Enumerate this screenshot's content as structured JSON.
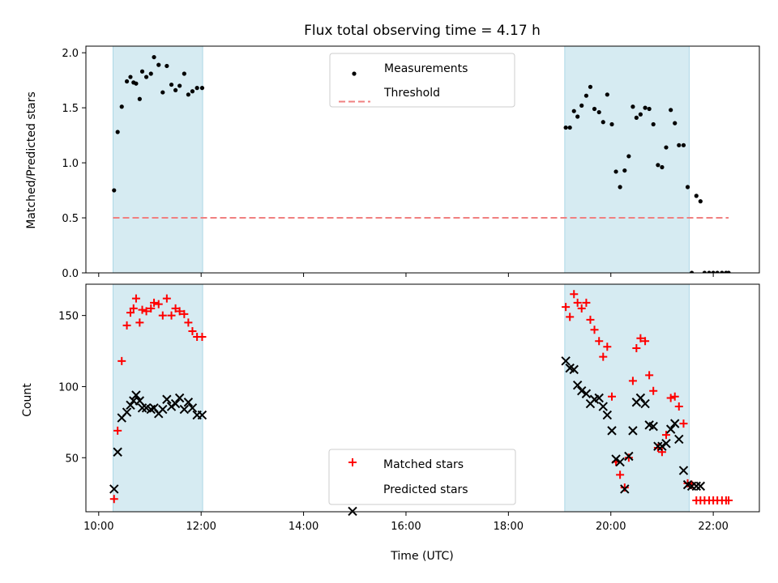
{
  "chart_data": {
    "type": "scatter",
    "title": "Flux total observing time = 4.17 h",
    "xlabel": "Time (UTC)",
    "x_unit": "hours UTC",
    "xlim": [
      9.75,
      22.9
    ],
    "x_ticks": [
      {
        "value": 10,
        "label": "10:00"
      },
      {
        "value": 12,
        "label": "12:00"
      },
      {
        "value": 14,
        "label": "14:00"
      },
      {
        "value": 16,
        "label": "16:00"
      },
      {
        "value": 18,
        "label": "18:00"
      },
      {
        "value": 20,
        "label": "20:00"
      },
      {
        "value": 22,
        "label": "22:00"
      }
    ],
    "colors": {
      "shade": "#add8e6",
      "measurement": "#000000",
      "threshold": "#f08080",
      "matched": "#ff0000",
      "predicted": "#000000"
    },
    "shaded_intervals": [
      [
        10.28,
        12.03
      ],
      [
        19.1,
        21.53
      ]
    ],
    "panels": [
      {
        "id": "ratio",
        "ylabel": "Matched/Predicted stars",
        "ylim": [
          0,
          2.06
        ],
        "y_ticks": [
          "0.0",
          "0.5",
          "1.0",
          "1.5",
          "2.0"
        ],
        "legend": {
          "position": "upper center",
          "entries": [
            "Measurements",
            "Threshold"
          ]
        },
        "threshold": {
          "value": 0.5,
          "x_range": [
            10.28,
            22.3
          ]
        },
        "measurements": {
          "x": [
            10.3,
            10.37,
            10.45,
            10.55,
            10.62,
            10.68,
            10.73,
            10.8,
            10.85,
            10.93,
            11.02,
            11.08,
            11.17,
            11.25,
            11.33,
            11.42,
            11.5,
            11.58,
            11.67,
            11.75,
            11.83,
            11.92,
            12.02,
            19.12,
            19.2,
            19.28,
            19.35,
            19.43,
            19.52,
            19.6,
            19.68,
            19.77,
            19.85,
            19.93,
            20.02,
            20.1,
            20.18,
            20.27,
            20.35,
            20.43,
            20.5,
            20.58,
            20.67,
            20.75,
            20.83,
            20.92,
            21.0,
            21.08,
            21.17,
            21.25,
            21.33,
            21.42,
            21.5,
            21.58,
            21.67,
            21.75,
            21.83,
            21.92,
            22.0,
            22.08,
            22.17,
            22.25,
            22.3
          ],
          "y": [
            0.75,
            1.28,
            1.51,
            1.74,
            1.78,
            1.73,
            1.72,
            1.58,
            1.83,
            1.78,
            1.81,
            1.96,
            1.89,
            1.64,
            1.88,
            1.71,
            1.66,
            1.7,
            1.81,
            1.62,
            1.65,
            1.68,
            1.68,
            1.32,
            1.32,
            1.47,
            1.42,
            1.52,
            1.61,
            1.69,
            1.49,
            1.46,
            1.37,
            1.62,
            1.35,
            0.92,
            0.78,
            0.93,
            1.06,
            1.51,
            1.41,
            1.44,
            1.5,
            1.49,
            1.35,
            0.98,
            0.96,
            1.14,
            1.48,
            1.36,
            1.16,
            1.16,
            0.78,
            0.0,
            0.7,
            0.65,
            0.0,
            0.0,
            0.0,
            0.0,
            0.0,
            0.0,
            0.0
          ]
        }
      },
      {
        "id": "counts",
        "ylabel": "Count",
        "ylim": [
          12,
          172
        ],
        "y_ticks": [
          "50",
          "100",
          "150"
        ],
        "legend": {
          "position": "lower center",
          "entries": [
            "Matched stars",
            "Predicted stars"
          ]
        },
        "matched": {
          "x": [
            10.3,
            10.37,
            10.45,
            10.55,
            10.62,
            10.68,
            10.73,
            10.8,
            10.85,
            10.93,
            11.02,
            11.08,
            11.17,
            11.25,
            11.33,
            11.42,
            11.5,
            11.58,
            11.67,
            11.75,
            11.83,
            11.92,
            12.02,
            19.12,
            19.2,
            19.28,
            19.35,
            19.43,
            19.52,
            19.6,
            19.68,
            19.77,
            19.85,
            19.93,
            20.02,
            20.1,
            20.18,
            20.27,
            20.35,
            20.43,
            20.5,
            20.58,
            20.67,
            20.75,
            20.83,
            20.92,
            21.0,
            21.08,
            21.17,
            21.25,
            21.33,
            21.42,
            21.5,
            21.58,
            21.67,
            21.75,
            21.83,
            21.92,
            22.0,
            22.08,
            22.17,
            22.25,
            22.3
          ],
          "y": [
            21,
            69,
            118,
            143,
            152,
            155,
            162,
            145,
            154,
            153,
            155,
            159,
            158,
            150,
            162,
            150,
            155,
            153,
            151,
            145,
            139,
            135,
            135,
            156,
            149,
            165,
            159,
            155,
            159,
            147,
            140,
            132,
            121,
            128,
            93,
            47,
            38,
            29,
            50,
            104,
            127,
            134,
            132,
            108,
            97,
            57,
            54,
            66,
            92,
            93,
            86,
            74,
            32,
            31,
            20,
            20,
            20,
            20,
            20,
            20,
            20,
            20,
            20
          ]
        },
        "predicted": {
          "x": [
            10.3,
            10.37,
            10.45,
            10.55,
            10.62,
            10.68,
            10.73,
            10.8,
            10.85,
            10.93,
            11.02,
            11.08,
            11.17,
            11.25,
            11.33,
            11.42,
            11.5,
            11.58,
            11.67,
            11.75,
            11.83,
            11.92,
            12.02,
            19.12,
            19.2,
            19.28,
            19.35,
            19.43,
            19.52,
            19.6,
            19.68,
            19.77,
            19.85,
            19.93,
            20.02,
            20.1,
            20.18,
            20.27,
            20.35,
            20.43,
            20.5,
            20.58,
            20.67,
            20.75,
            20.83,
            20.92,
            21.0,
            21.08,
            21.17,
            21.25,
            21.33,
            21.42,
            21.5,
            21.58,
            21.67,
            21.75
          ],
          "y": [
            28,
            54,
            78,
            82,
            87,
            90,
            94,
            90,
            85,
            85,
            84,
            85,
            81,
            84,
            91,
            86,
            88,
            92,
            84,
            89,
            85,
            80,
            80,
            118,
            113,
            112,
            101,
            97,
            95,
            88,
            91,
            92,
            86,
            80,
            69,
            49,
            47,
            28,
            51,
            69,
            89,
            92,
            88,
            73,
            72,
            58,
            58,
            60,
            70,
            74,
            63,
            41,
            31,
            30,
            30,
            30
          ]
        }
      }
    ]
  }
}
